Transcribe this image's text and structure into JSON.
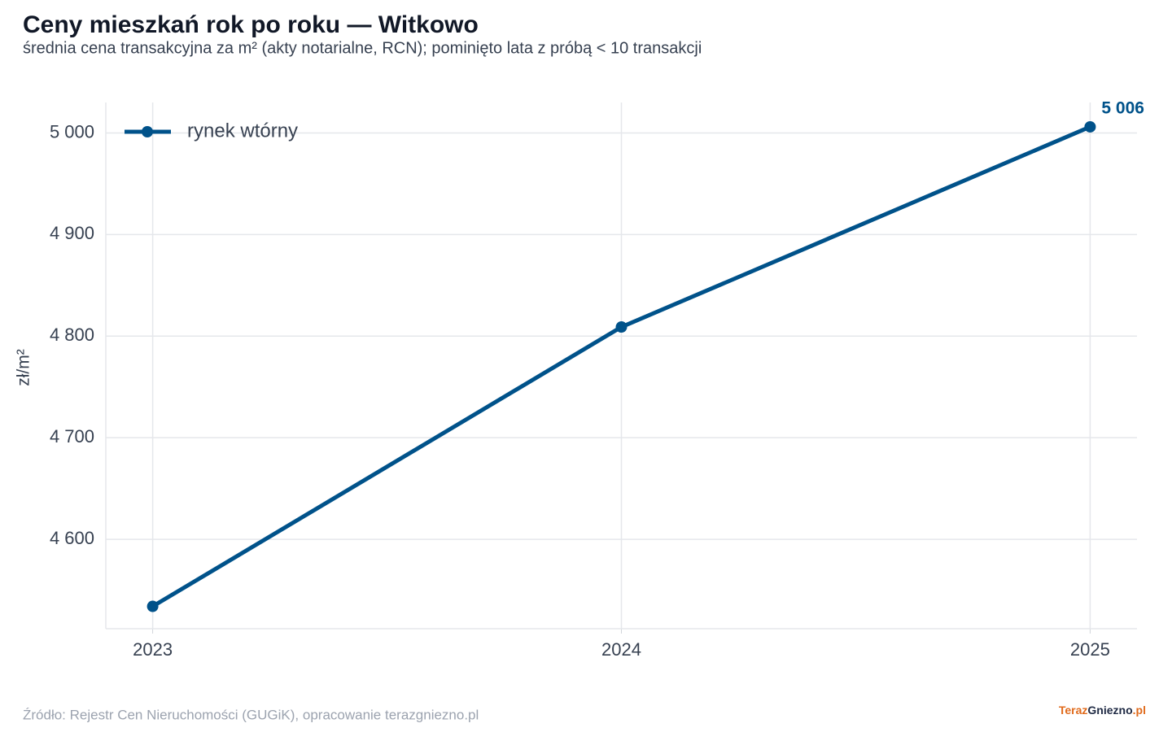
{
  "chart_data": {
    "type": "line",
    "title": "Ceny mieszkań rok po roku — Witkowo",
    "subtitle": "średnia cena transakcyjna za m² (akty notarialne, RCN); pominięto lata z próbą < 10 transakcji",
    "y_label": "zł/m²",
    "x": [
      2023,
      2024,
      2025
    ],
    "series": [
      {
        "name": "rynek wtórny",
        "color": "#00528a",
        "values": [
          4534,
          4809,
          5006
        ],
        "value_labels": [
          null,
          null,
          "5 006"
        ]
      }
    ],
    "xlim": [
      2022.9,
      2025.1
    ],
    "xticks": [
      2023,
      2024,
      2025
    ],
    "ylim": [
      4512,
      5030
    ],
    "yticks": [
      {
        "value": 4600,
        "label": "4 600"
      },
      {
        "value": 4700,
        "label": "4 700"
      },
      {
        "value": 4800,
        "label": "4 800"
      },
      {
        "value": 4900,
        "label": "4 900"
      },
      {
        "value": 5000,
        "label": "5 000"
      }
    ],
    "grid": true,
    "legend": "upper left",
    "source": "Źródło: Rejestr Cen Nieruchomości (GUGiK), opracowanie terazgniezno.pl",
    "logo": [
      "Teraz",
      "Gniezno",
      ".pl"
    ]
  }
}
